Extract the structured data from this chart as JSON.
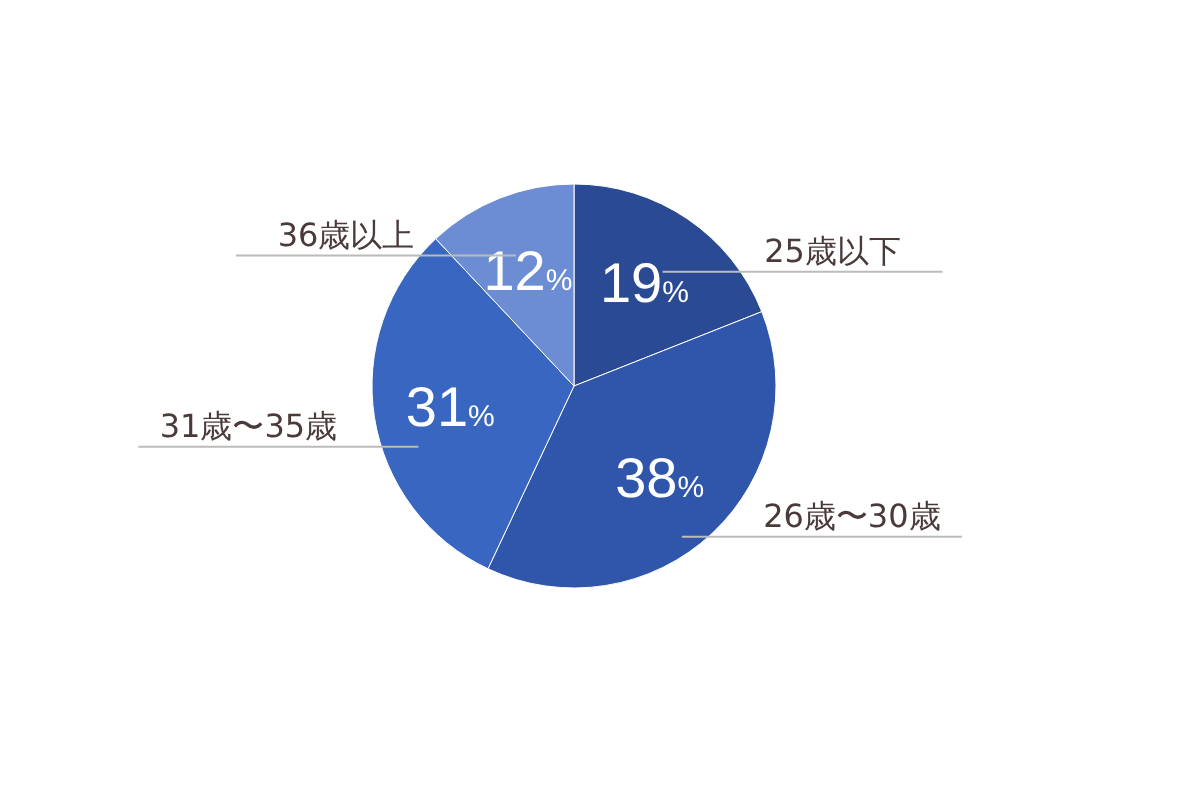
{
  "chart_data": {
    "type": "pie",
    "categories": [
      "25歳以下",
      "26歳〜30歳",
      "31歳〜35歳",
      "36歳以上"
    ],
    "values": [
      19,
      38,
      31,
      12
    ],
    "value_labels": [
      "19%",
      "38%",
      "31%",
      "12%"
    ],
    "colors": [
      "#2b4a94",
      "#2f56ab",
      "#3966c0",
      "#6c8cd4"
    ]
  }
}
